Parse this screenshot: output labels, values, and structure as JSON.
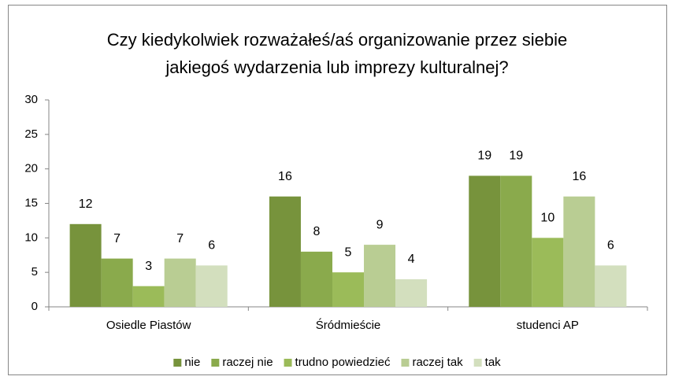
{
  "chart_data": {
    "type": "bar",
    "title": [
      "Czy kiedykolwiek rozważałeś/aś organizowanie przez siebie",
      "jakiegoś wydarzenia lub imprezy kulturalnej?"
    ],
    "categories": [
      "Osiedle Piastów",
      "Śródmieście",
      "studenci AP"
    ],
    "series": [
      {
        "name": "nie",
        "color": "#77933c",
        "values": [
          12,
          16,
          19
        ]
      },
      {
        "name": "raczej nie",
        "color": "#8aaa4c",
        "values": [
          7,
          8,
          19
        ]
      },
      {
        "name": "trudno powiedzieć",
        "color": "#9bbb59",
        "values": [
          3,
          5,
          10
        ]
      },
      {
        "name": "raczej tak",
        "color": "#b9cd93",
        "values": [
          7,
          9,
          16
        ]
      },
      {
        "name": "tak",
        "color": "#d3dfbe",
        "values": [
          6,
          4,
          6
        ]
      }
    ],
    "ylim": [
      0,
      30
    ],
    "yticks": [
      0,
      5,
      10,
      15,
      20,
      25,
      30
    ],
    "grid": false,
    "legend": "bottom"
  }
}
